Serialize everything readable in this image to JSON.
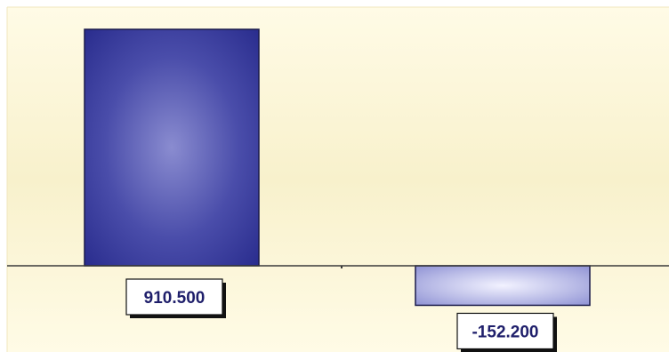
{
  "chart_data": {
    "type": "bar",
    "categories": [
      "",
      ""
    ],
    "series": [
      {
        "values": [
          910.5,
          -152.2
        ]
      }
    ],
    "data_labels": [
      "910.500",
      "-152.200"
    ],
    "ylim": [
      -300,
      1000
    ],
    "grid": false,
    "legend": "none",
    "colors": {
      "bar_positive": "#2e3192",
      "bar_negative": "#a8aae0",
      "background": "#fffbe0",
      "label_text": "#1f1f6b"
    }
  }
}
